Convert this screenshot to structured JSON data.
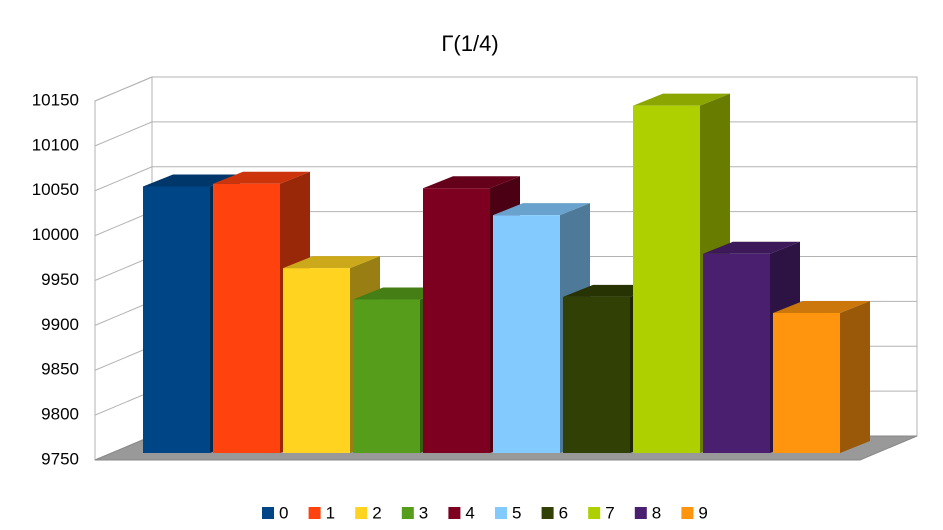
{
  "chart_data": {
    "type": "bar3d",
    "title": "Γ(1/4)",
    "categories": [
      ""
    ],
    "series": [
      {
        "name": "0",
        "color": "#004586",
        "values": [
          10047
        ]
      },
      {
        "name": "1",
        "color": "#ff420e",
        "values": [
          10050
        ]
      },
      {
        "name": "2",
        "color": "#ffd320",
        "values": [
          9956
        ]
      },
      {
        "name": "3",
        "color": "#579d1c",
        "values": [
          9921
        ]
      },
      {
        "name": "4",
        "color": "#7e0021",
        "values": [
          10045
        ]
      },
      {
        "name": "5",
        "color": "#83caff",
        "values": [
          10015
        ]
      },
      {
        "name": "6",
        "color": "#314004",
        "values": [
          9924
        ]
      },
      {
        "name": "7",
        "color": "#aecf00",
        "values": [
          10137
        ]
      },
      {
        "name": "8",
        "color": "#4b1f6f",
        "values": [
          9972
        ]
      },
      {
        "name": "9",
        "color": "#ff950e",
        "values": [
          9906
        ]
      }
    ],
    "ylim": [
      9750,
      10150
    ],
    "yticks": [
      9750,
      9800,
      9850,
      9900,
      9950,
      10000,
      10050,
      10100,
      10150
    ],
    "grid": true,
    "legend": "bottom"
  }
}
